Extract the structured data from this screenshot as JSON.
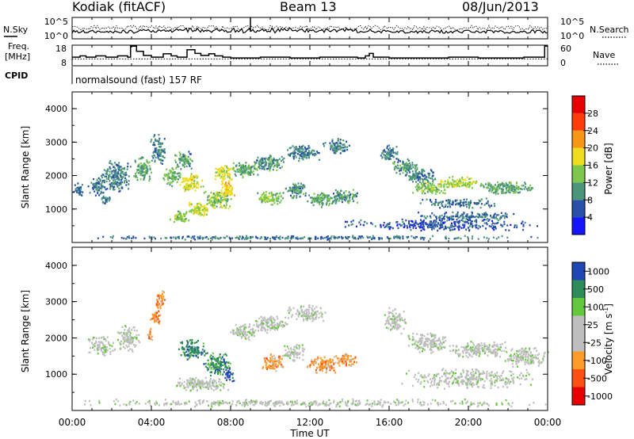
{
  "header": {
    "station": "Kodiak (fitACF)",
    "beam": "Beam 13",
    "date": "08/Jun/2013"
  },
  "side_labels": {
    "nsky": "N.Sky",
    "nsearch": "N.Search",
    "freq_line1": "Freq.",
    "freq_line2": "[MHz]",
    "nave": "Nave",
    "cpid": "CPID"
  },
  "cpid_text": "normalsound (fast) 157 RF",
  "noise_axis": {
    "left_ticks": [
      "10^5",
      "10^0"
    ],
    "right_ticks": [
      "10^5",
      "10^0"
    ]
  },
  "freq_axis": {
    "left_ticks": [
      "18",
      "8"
    ],
    "right_ticks": [
      "60",
      "0"
    ],
    "ylim": [
      8,
      18
    ],
    "nave_ylim": [
      0,
      60
    ]
  },
  "freq_step": [
    [
      0.0,
      12.2
    ],
    [
      0.4,
      12.8
    ],
    [
      0.7,
      12.2
    ],
    [
      1.2,
      12.8
    ],
    [
      1.7,
      12.2
    ],
    [
      2.3,
      12.8
    ],
    [
      2.8,
      12.2
    ],
    [
      2.95,
      17.5
    ],
    [
      3.25,
      15.0
    ],
    [
      3.6,
      13.0
    ],
    [
      4.0,
      12.2
    ],
    [
      4.6,
      13.8
    ],
    [
      5.0,
      12.8
    ],
    [
      5.3,
      12.2
    ],
    [
      5.8,
      15.8
    ],
    [
      6.2,
      14.0
    ],
    [
      6.5,
      13.0
    ],
    [
      6.9,
      13.8
    ],
    [
      7.2,
      12.8
    ],
    [
      7.6,
      12.2
    ],
    [
      8.0,
      11.8
    ],
    [
      9.5,
      12.2
    ],
    [
      11.0,
      11.8
    ],
    [
      12.5,
      12.2
    ],
    [
      14.4,
      11.8
    ],
    [
      14.8,
      12.8
    ],
    [
      15.0,
      14.0
    ],
    [
      15.2,
      12.2
    ],
    [
      16.0,
      11.8
    ],
    [
      19.0,
      12.2
    ],
    [
      20.5,
      11.8
    ],
    [
      22.8,
      12.2
    ],
    [
      23.85,
      17.5
    ]
  ],
  "nave_level": 20,
  "colors": {
    "power": [
      "#1414ff",
      "#2850a8",
      "#4b9678",
      "#7dc84b",
      "#f0dc1e",
      "#f59614",
      "#ff3c0a",
      "#e60000"
    ],
    "velocity": [
      "#e60000",
      "#ff5014",
      "#ff9b28",
      "#bebebe",
      "#bebebe",
      "#64c83c",
      "#2d8c5a",
      "#1e46b4"
    ]
  },
  "chart_data": [
    {
      "type": "heatmap",
      "name": "power",
      "xlabel": "",
      "ylabel": "Slant Range [km]",
      "ylim": [
        0,
        4500
      ],
      "yticks": [
        "1000",
        "2000",
        "3000",
        "4000"
      ],
      "colorbar": {
        "label": "Power [dB]",
        "ticks": [
          "4",
          "8",
          "12",
          "16",
          "20",
          "24",
          "28"
        ],
        "range": [
          0,
          32
        ]
      },
      "blobs": [
        {
          "t": 0.3,
          "r": 1600,
          "dt": 0.3,
          "dr": 250,
          "v": 7,
          "d": 0.5
        },
        {
          "t": 1.2,
          "r": 1700,
          "dt": 0.5,
          "dr": 300,
          "v": 9,
          "d": 0.6
        },
        {
          "t": 2.2,
          "r": 2000,
          "dt": 0.8,
          "dr": 500,
          "v": 9,
          "d": 0.6
        },
        {
          "t": 1.7,
          "r": 1300,
          "dt": 0.3,
          "dr": 150,
          "v": 8,
          "d": 0.6
        },
        {
          "t": 3.5,
          "r": 2200,
          "dt": 0.5,
          "dr": 400,
          "v": 11,
          "d": 0.65
        },
        {
          "t": 4.3,
          "r": 2800,
          "dt": 0.4,
          "dr": 500,
          "v": 9,
          "d": 0.6
        },
        {
          "t": 5.0,
          "r": 2000,
          "dt": 0.5,
          "dr": 300,
          "v": 13,
          "d": 0.6
        },
        {
          "t": 5.6,
          "r": 2500,
          "dt": 0.5,
          "dr": 300,
          "v": 10,
          "d": 0.55
        },
        {
          "t": 6.0,
          "r": 1800,
          "dt": 0.6,
          "dr": 300,
          "v": 18,
          "d": 0.7
        },
        {
          "t": 5.4,
          "r": 800,
          "dt": 0.5,
          "dr": 200,
          "v": 14,
          "d": 0.85
        },
        {
          "t": 6.3,
          "r": 1000,
          "dt": 0.6,
          "dr": 250,
          "v": 16,
          "d": 0.8
        },
        {
          "t": 7.3,
          "r": 1300,
          "dt": 0.7,
          "dr": 300,
          "v": 14,
          "d": 0.75
        },
        {
          "t": 7.8,
          "r": 1600,
          "dt": 0.4,
          "dr": 300,
          "v": 19,
          "d": 0.7
        },
        {
          "t": 7.6,
          "r": 2100,
          "dt": 0.5,
          "dr": 250,
          "v": 17,
          "d": 0.7
        },
        {
          "t": 8.7,
          "r": 2200,
          "dt": 0.8,
          "dr": 250,
          "v": 12,
          "d": 0.65
        },
        {
          "t": 9.9,
          "r": 2400,
          "dt": 0.9,
          "dr": 250,
          "v": 10,
          "d": 0.6
        },
        {
          "t": 11.6,
          "r": 2700,
          "dt": 1.0,
          "dr": 250,
          "v": 9,
          "d": 0.55
        },
        {
          "t": 13.3,
          "r": 2900,
          "dt": 0.7,
          "dr": 250,
          "v": 9,
          "d": 0.5
        },
        {
          "t": 10.0,
          "r": 1350,
          "dt": 0.7,
          "dr": 230,
          "v": 14,
          "d": 0.8
        },
        {
          "t": 11.3,
          "r": 1600,
          "dt": 0.6,
          "dr": 250,
          "v": 10,
          "d": 0.7
        },
        {
          "t": 12.6,
          "r": 1300,
          "dt": 0.8,
          "dr": 220,
          "v": 11,
          "d": 0.8
        },
        {
          "t": 13.7,
          "r": 1400,
          "dt": 0.7,
          "dr": 220,
          "v": 10,
          "d": 0.75
        },
        {
          "t": 16.0,
          "r": 2700,
          "dt": 0.5,
          "dr": 300,
          "v": 9,
          "d": 0.55
        },
        {
          "t": 16.8,
          "r": 2300,
          "dt": 0.7,
          "dr": 250,
          "v": 10,
          "d": 0.6
        },
        {
          "t": 17.6,
          "r": 2000,
          "dt": 0.9,
          "dr": 250,
          "v": 9,
          "d": 0.6
        },
        {
          "t": 18.0,
          "r": 1650,
          "dt": 0.9,
          "dr": 200,
          "v": 14,
          "d": 0.7
        },
        {
          "t": 19.5,
          "r": 1800,
          "dt": 1.2,
          "dr": 200,
          "v": 15,
          "d": 0.65
        },
        {
          "t": 21.8,
          "r": 1650,
          "dt": 1.5,
          "dr": 200,
          "v": 11,
          "d": 0.65
        },
        {
          "t": 19.5,
          "r": 1200,
          "dt": 2.0,
          "dr": 150,
          "v": 8,
          "d": 0.4
        },
        {
          "t": 20.0,
          "r": 800,
          "dt": 3.0,
          "dr": 150,
          "v": 8,
          "d": 0.4
        },
        {
          "t": 18.5,
          "r": 550,
          "dt": 5.0,
          "dr": 180,
          "v": 6,
          "d": 0.35
        },
        {
          "t": 12.0,
          "r": 170,
          "dt": 12.0,
          "dr": 60,
          "v": 8,
          "d": 0.45
        }
      ]
    },
    {
      "type": "heatmap",
      "name": "velocity",
      "xlabel": "Time UT",
      "ylabel": "Slant Range [km]",
      "ylim": [
        0,
        4500
      ],
      "yticks": [
        "1000",
        "2000",
        "3000",
        "4000"
      ],
      "xticks": [
        "00:00",
        "04:00",
        "08:00",
        "12:00",
        "16:00",
        "20:00",
        "00:00"
      ],
      "xlim": [
        0,
        24
      ],
      "colorbar": {
        "label": "Velocity [m s^-1]",
        "ticks": [
          "-1000",
          "-500",
          "-100",
          "-25",
          "25",
          "100",
          "500",
          "1000"
        ],
        "range": [
          0,
          8
        ]
      },
      "blobs": [
        {
          "t": 1.5,
          "r": 1800,
          "dt": 0.8,
          "dr": 300,
          "v": 4,
          "d": 0.4
        },
        {
          "t": 2.8,
          "r": 2000,
          "dt": 0.6,
          "dr": 400,
          "v": 4,
          "d": 0.5
        },
        {
          "t": 4.4,
          "r": 3100,
          "dt": 0.25,
          "dr": 300,
          "v": 2,
          "d": 0.7
        },
        {
          "t": 4.2,
          "r": 2600,
          "dt": 0.3,
          "dr": 250,
          "v": 2,
          "d": 0.6
        },
        {
          "t": 3.9,
          "r": 2100,
          "dt": 0.2,
          "dr": 200,
          "v": 2,
          "d": 0.6
        },
        {
          "t": 6.0,
          "r": 1700,
          "dt": 0.7,
          "dr": 300,
          "v": 6,
          "d": 0.75
        },
        {
          "t": 7.3,
          "r": 1300,
          "dt": 0.7,
          "dr": 350,
          "v": 6,
          "d": 0.75
        },
        {
          "t": 7.9,
          "r": 1000,
          "dt": 0.3,
          "dr": 200,
          "v": 7,
          "d": 0.6
        },
        {
          "t": 6.5,
          "r": 750,
          "dt": 1.5,
          "dr": 200,
          "v": 4,
          "d": 0.8
        },
        {
          "t": 8.7,
          "r": 2200,
          "dt": 0.8,
          "dr": 250,
          "v": 4,
          "d": 0.55
        },
        {
          "t": 10.0,
          "r": 2400,
          "dt": 1.0,
          "dr": 250,
          "v": 4,
          "d": 0.55
        },
        {
          "t": 11.8,
          "r": 2700,
          "dt": 1.0,
          "dr": 250,
          "v": 4,
          "d": 0.5
        },
        {
          "t": 10.1,
          "r": 1350,
          "dt": 0.6,
          "dr": 250,
          "v": 2,
          "d": 0.8
        },
        {
          "t": 12.6,
          "r": 1300,
          "dt": 0.8,
          "dr": 250,
          "v": 2,
          "d": 0.8
        },
        {
          "t": 13.8,
          "r": 1400,
          "dt": 0.6,
          "dr": 200,
          "v": 2,
          "d": 0.7
        },
        {
          "t": 11.2,
          "r": 1600,
          "dt": 0.6,
          "dr": 250,
          "v": 4,
          "d": 0.6
        },
        {
          "t": 16.3,
          "r": 2500,
          "dt": 0.6,
          "dr": 400,
          "v": 4,
          "d": 0.55
        },
        {
          "t": 18.0,
          "r": 1900,
          "dt": 1.2,
          "dr": 300,
          "v": 4,
          "d": 0.55
        },
        {
          "t": 20.5,
          "r": 1700,
          "dt": 1.5,
          "dr": 250,
          "v": 4,
          "d": 0.55
        },
        {
          "t": 22.8,
          "r": 1500,
          "dt": 1.2,
          "dr": 300,
          "v": 4,
          "d": 0.5
        },
        {
          "t": 20.0,
          "r": 900,
          "dt": 3.5,
          "dr": 300,
          "v": 4,
          "d": 0.3
        },
        {
          "t": 12.0,
          "r": 230,
          "dt": 12.0,
          "dr": 110,
          "v": 4,
          "d": 0.3
        }
      ]
    }
  ]
}
